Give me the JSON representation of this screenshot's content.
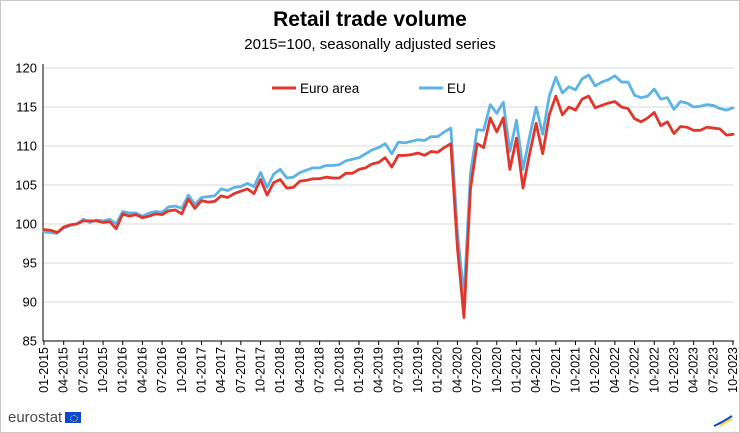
{
  "chart_data": {
    "type": "line",
    "title": "Retail trade volume",
    "subtitle": "2015=100, seasonally adjusted series",
    "xlabel": "",
    "ylabel": "",
    "ylim": [
      85,
      120
    ],
    "yticks": [
      85,
      90,
      95,
      100,
      105,
      110,
      115,
      120
    ],
    "grid": "horizontal",
    "legend_position": "top-center",
    "x_start": "01-2015",
    "x_end": "10-2023",
    "xtick_labels": [
      "01-2015",
      "04-2015",
      "07-2015",
      "10-2015",
      "01-2016",
      "04-2016",
      "07-2016",
      "10-2016",
      "01-2017",
      "04-2017",
      "07-2017",
      "10-2017",
      "01-2018",
      "04-2018",
      "07-2018",
      "10-2018",
      "01-2019",
      "04-2019",
      "07-2019",
      "10-2019",
      "01-2020",
      "04-2020",
      "07-2020",
      "10-2020",
      "01-2021",
      "04-2021",
      "07-2021",
      "10-2021",
      "01-2022",
      "04-2022",
      "07-2022",
      "10-2022",
      "01-2023",
      "04-2023",
      "07-2023",
      "10-2023"
    ],
    "series": [
      {
        "name": "Euro area",
        "color": "#e0362c",
        "values": [
          99.3,
          99.2,
          98.9,
          99.6,
          99.9,
          100.0,
          100.4,
          100.4,
          100.4,
          100.2,
          100.3,
          99.4,
          101.3,
          101.0,
          101.2,
          100.8,
          101.0,
          101.3,
          101.2,
          101.7,
          101.8,
          101.3,
          103.2,
          102.0,
          103.0,
          102.8,
          102.9,
          103.6,
          103.4,
          103.9,
          104.2,
          104.5,
          103.9,
          105.7,
          103.7,
          105.3,
          105.7,
          104.6,
          104.7,
          105.5,
          105.6,
          105.8,
          105.8,
          106.0,
          105.9,
          105.9,
          106.5,
          106.5,
          107.0,
          107.2,
          107.7,
          107.9,
          108.5,
          107.3,
          108.8,
          108.8,
          108.9,
          109.1,
          108.8,
          109.3,
          109.2,
          109.8,
          110.3,
          97.0,
          88.0,
          104.6,
          110.3,
          109.8,
          113.6,
          111.8,
          113.6,
          107.0,
          111.0,
          104.6,
          109.0,
          112.9,
          109.0,
          114.0,
          116.4,
          114.0,
          115.0,
          114.6,
          116.0,
          116.4,
          114.9,
          115.2,
          115.5,
          115.7,
          115.0,
          114.8,
          113.5,
          113.1,
          113.6,
          114.3,
          112.6,
          113.1,
          111.6,
          112.5,
          112.4,
          112.0,
          112.0,
          112.4,
          112.3,
          112.2,
          111.4,
          111.5
        ]
      },
      {
        "name": "EU",
        "color": "#5bb4e5",
        "values": [
          99.0,
          98.9,
          98.8,
          99.5,
          99.8,
          100.0,
          100.6,
          100.2,
          100.5,
          100.4,
          100.6,
          100.0,
          101.6,
          101.4,
          101.4,
          101.0,
          101.4,
          101.6,
          101.5,
          102.2,
          102.3,
          102.0,
          103.7,
          102.5,
          103.4,
          103.5,
          103.6,
          104.5,
          104.3,
          104.7,
          104.8,
          105.2,
          104.8,
          106.6,
          104.7,
          106.4,
          107.0,
          105.9,
          106.0,
          106.6,
          106.9,
          107.2,
          107.2,
          107.5,
          107.5,
          107.6,
          108.1,
          108.3,
          108.5,
          109.0,
          109.5,
          109.8,
          110.3,
          109.0,
          110.5,
          110.4,
          110.6,
          110.8,
          110.7,
          111.2,
          111.2,
          111.8,
          112.3,
          99.0,
          90.7,
          106.5,
          112.1,
          112.0,
          115.3,
          114.2,
          115.6,
          109.3,
          113.3,
          107.0,
          111.2,
          115.0,
          111.5,
          116.4,
          118.8,
          116.8,
          117.6,
          117.2,
          118.6,
          119.1,
          117.7,
          118.2,
          118.5,
          119.0,
          118.2,
          118.2,
          116.5,
          116.2,
          116.4,
          117.3,
          116.0,
          116.2,
          114.7,
          115.7,
          115.5,
          115.0,
          115.1,
          115.3,
          115.2,
          114.8,
          114.6,
          114.9
        ]
      }
    ]
  },
  "footer": {
    "brand": "eurostat"
  }
}
